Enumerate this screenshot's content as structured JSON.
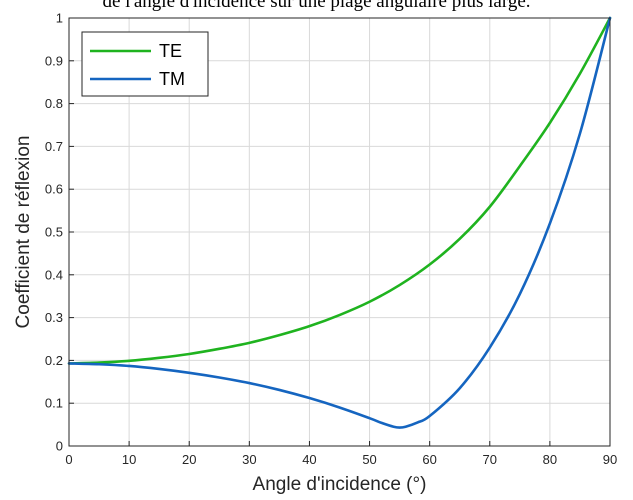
{
  "page_text": "de l'angle d'incidence sur une plage angulaire plus large.",
  "chart_data": {
    "type": "line",
    "title": "",
    "xlabel": "Angle d'incidence (°)",
    "ylabel": "Coefficient de réflexion",
    "xlim": [
      0,
      90
    ],
    "ylim": [
      0,
      1
    ],
    "xticks": [
      0,
      10,
      20,
      30,
      40,
      50,
      60,
      70,
      80,
      90
    ],
    "yticks": [
      0,
      0.1,
      0.2,
      0.3,
      0.4,
      0.5,
      0.6,
      0.7,
      0.8,
      0.9,
      1
    ],
    "grid": true,
    "legend_position": "top-left",
    "series": [
      {
        "name": "TE",
        "color": "#1fb31f",
        "x": [
          0,
          5,
          10,
          15,
          20,
          25,
          30,
          35,
          40,
          45,
          50,
          55,
          60,
          65,
          70,
          75,
          80,
          85,
          90
        ],
        "y": [
          0.193,
          0.195,
          0.199,
          0.206,
          0.215,
          0.227,
          0.241,
          0.259,
          0.28,
          0.306,
          0.337,
          0.376,
          0.424,
          0.484,
          0.559,
          0.654,
          0.755,
          0.87,
          1.0
        ]
      },
      {
        "name": "TM",
        "color": "#1565c0",
        "x": [
          0,
          5,
          10,
          15,
          20,
          25,
          30,
          35,
          40,
          45,
          50,
          52,
          54,
          55,
          56,
          58,
          60,
          65,
          70,
          75,
          80,
          85,
          90
        ],
        "y": [
          0.193,
          0.191,
          0.187,
          0.18,
          0.171,
          0.16,
          0.147,
          0.131,
          0.112,
          0.09,
          0.065,
          0.054,
          0.045,
          0.043,
          0.045,
          0.055,
          0.07,
          0.135,
          0.23,
          0.355,
          0.52,
          0.73,
          1.0
        ]
      }
    ]
  }
}
